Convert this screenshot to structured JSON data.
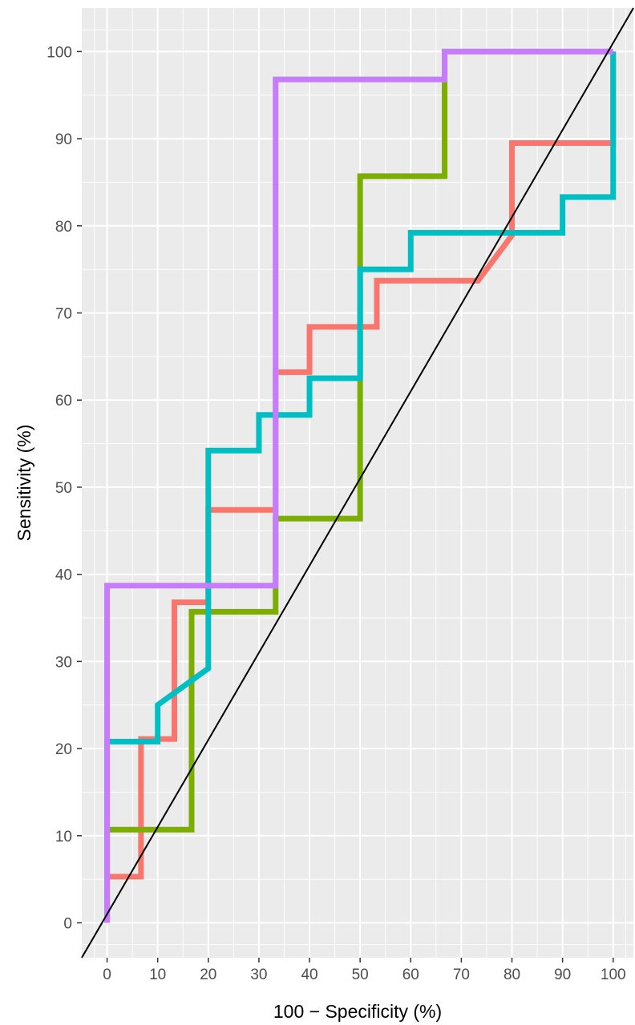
{
  "chart_data": {
    "type": "line",
    "title": "",
    "xlabel": "100 − Specificity (%)",
    "ylabel": "Sensitivity (%)",
    "xlim": [
      -5,
      104
    ],
    "ylim": [
      -4,
      105
    ],
    "x_ticks": [
      0,
      10,
      20,
      30,
      40,
      50,
      60,
      70,
      80,
      90,
      100
    ],
    "y_ticks": [
      0,
      10,
      20,
      30,
      40,
      50,
      60,
      70,
      80,
      90,
      100
    ],
    "grid": true,
    "legend": "none",
    "reference_line": {
      "from": [
        -5,
        -4
      ],
      "to": [
        104,
        105
      ],
      "color": "#000000"
    },
    "series": [
      {
        "color": "#F8766D",
        "x": [
          0,
          0,
          6.7,
          6.7,
          13.3,
          13.3,
          20,
          20,
          33.3,
          33.3,
          40,
          40,
          53.3,
          53.3,
          73.3,
          80,
          80,
          100,
          100
        ],
        "y": [
          0,
          5.3,
          5.3,
          21.1,
          21.1,
          36.8,
          36.8,
          47.4,
          47.4,
          63.2,
          63.2,
          68.4,
          68.4,
          73.7,
          73.7,
          78.9,
          89.5,
          89.5,
          100
        ]
      },
      {
        "color": "#7CAE00",
        "x": [
          0,
          0,
          16.7,
          16.7,
          33.3,
          33.3,
          50,
          50,
          66.7,
          66.7,
          100
        ],
        "y": [
          0,
          10.7,
          10.7,
          35.7,
          35.7,
          46.4,
          46.4,
          85.7,
          85.7,
          100,
          100
        ]
      },
      {
        "color": "#00BFC4",
        "x": [
          0,
          0,
          10,
          10,
          20,
          20,
          30,
          30,
          40,
          40,
          50,
          50,
          60,
          60,
          90,
          90,
          100,
          100
        ],
        "y": [
          0,
          20.8,
          20.8,
          25,
          29.2,
          54.2,
          54.2,
          58.3,
          58.3,
          62.5,
          62.5,
          75,
          75,
          79.2,
          79.2,
          83.3,
          83.3,
          100
        ]
      },
      {
        "color": "#C77CFF",
        "x": [
          0,
          0,
          33.3,
          33.3,
          66.7,
          66.7,
          100
        ],
        "y": [
          0,
          38.7,
          38.7,
          96.8,
          96.8,
          100,
          100
        ]
      }
    ]
  }
}
